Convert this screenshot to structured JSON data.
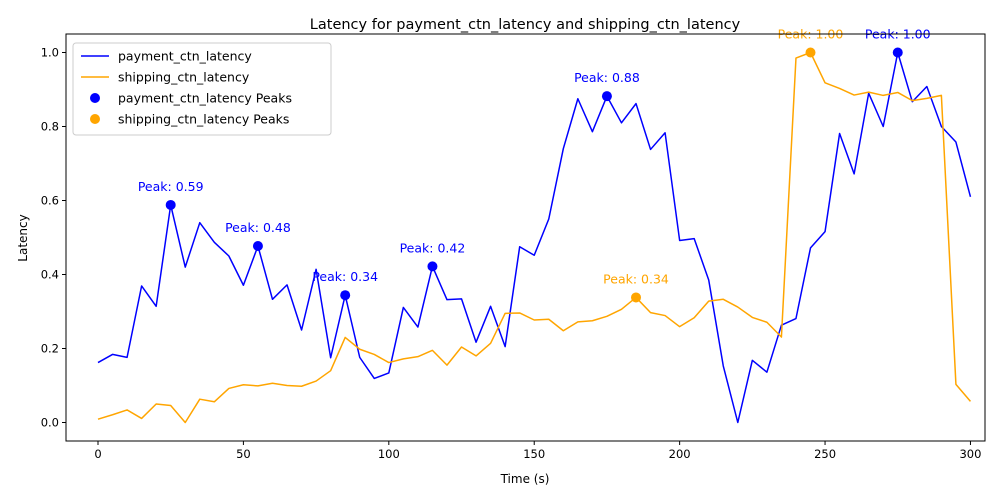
{
  "chart_data": {
    "type": "line",
    "title": "Latency for payment_ctn_latency and shipping_ctn_latency",
    "xlabel": "Time (s)",
    "ylabel": "Latency",
    "xlim": [
      -11,
      305
    ],
    "ylim": [
      -0.05,
      1.05
    ],
    "xticks": [
      0,
      50,
      100,
      150,
      200,
      250,
      300
    ],
    "yticks": [
      0.0,
      0.2,
      0.4,
      0.6,
      0.8,
      1.0
    ],
    "xtick_labels": [
      "0",
      "50",
      "100",
      "150",
      "200",
      "250",
      "300"
    ],
    "ytick_labels": [
      "0.0",
      "0.2",
      "0.4",
      "0.6",
      "0.8",
      "1.0"
    ],
    "grid": false,
    "legend_position": "top-left",
    "x": [
      0,
      5,
      10,
      15,
      20,
      25,
      30,
      35,
      40,
      45,
      50,
      55,
      60,
      65,
      70,
      75,
      80,
      85,
      90,
      95,
      100,
      105,
      110,
      115,
      120,
      125,
      130,
      135,
      140,
      145,
      150,
      155,
      160,
      165,
      170,
      175,
      180,
      185,
      190,
      195,
      200,
      205,
      210,
      215,
      220,
      225,
      230,
      235,
      240,
      245,
      250,
      255,
      260,
      265,
      270,
      275,
      280,
      285,
      290,
      295,
      300
    ],
    "series": [
      {
        "name": "payment_ctn_latency",
        "color": "#0000ff",
        "values": [
          0.162,
          0.184,
          0.176,
          0.369,
          0.314,
          0.588,
          0.42,
          0.54,
          0.487,
          0.45,
          0.371,
          0.477,
          0.333,
          0.372,
          0.25,
          0.414,
          0.175,
          0.344,
          0.176,
          0.119,
          0.134,
          0.311,
          0.258,
          0.422,
          0.332,
          0.334,
          0.217,
          0.314,
          0.205,
          0.475,
          0.452,
          0.55,
          0.74,
          0.875,
          0.786,
          0.882,
          0.81,
          0.862,
          0.738,
          0.783,
          0.492,
          0.497,
          0.385,
          0.153,
          0.0,
          0.168,
          0.136,
          0.263,
          0.281,
          0.472,
          0.516,
          0.781,
          0.672,
          0.89,
          0.8,
          1.0,
          0.867,
          0.908,
          0.8,
          0.758,
          0.61
        ]
      },
      {
        "name": "shipping_ctn_latency",
        "color": "#ffa500",
        "values": [
          0.009,
          0.021,
          0.034,
          0.011,
          0.05,
          0.046,
          0.0,
          0.063,
          0.056,
          0.092,
          0.102,
          0.099,
          0.106,
          0.1,
          0.098,
          0.112,
          0.14,
          0.23,
          0.198,
          0.184,
          0.162,
          0.172,
          0.178,
          0.195,
          0.155,
          0.204,
          0.18,
          0.214,
          0.295,
          0.296,
          0.277,
          0.279,
          0.248,
          0.272,
          0.275,
          0.287,
          0.306,
          0.338,
          0.297,
          0.289,
          0.259,
          0.283,
          0.328,
          0.333,
          0.312,
          0.284,
          0.271,
          0.231,
          0.985,
          1.0,
          0.918,
          0.903,
          0.885,
          0.893,
          0.884,
          0.892,
          0.87,
          0.876,
          0.884,
          0.103,
          0.057
        ]
      }
    ],
    "peaks": [
      {
        "series": "payment_ctn_latency Peaks",
        "color": "#0000ff",
        "points": [
          {
            "x": 25,
            "y": 0.588,
            "label": "Peak: 0.59"
          },
          {
            "x": 55,
            "y": 0.477,
            "label": "Peak: 0.48"
          },
          {
            "x": 85,
            "y": 0.344,
            "label": "Peak: 0.34"
          },
          {
            "x": 115,
            "y": 0.422,
            "label": "Peak: 0.42"
          },
          {
            "x": 175,
            "y": 0.882,
            "label": "Peak: 0.88"
          },
          {
            "x": 275,
            "y": 1.0,
            "label": "Peak: 1.00"
          }
        ]
      },
      {
        "series": "shipping_ctn_latency Peaks",
        "color": "#ffa500",
        "points": [
          {
            "x": 185,
            "y": 0.338,
            "label": "Peak: 0.34"
          },
          {
            "x": 245,
            "y": 1.0,
            "label": "Peak: 1.00"
          }
        ]
      }
    ],
    "legend": [
      {
        "label": "payment_ctn_latency",
        "kind": "line",
        "color": "#0000ff"
      },
      {
        "label": "shipping_ctn_latency",
        "kind": "line",
        "color": "#ffa500"
      },
      {
        "label": "payment_ctn_latency Peaks",
        "kind": "marker",
        "color": "#0000ff"
      },
      {
        "label": "shipping_ctn_latency Peaks",
        "kind": "marker",
        "color": "#ffa500"
      }
    ]
  }
}
